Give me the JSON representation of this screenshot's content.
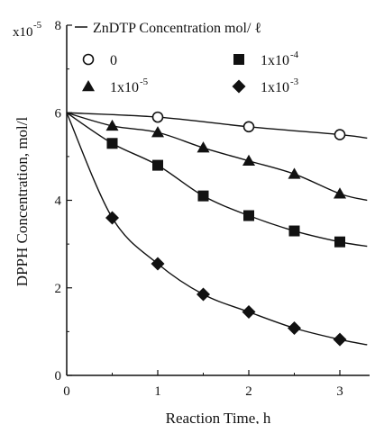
{
  "chart_data": {
    "type": "scatter",
    "xlabel": "Reaction Time, h",
    "ylabel": "DPPH Concentration, mol/l",
    "y_multiplier_label": "x10",
    "y_multiplier_exp": "-5",
    "xlim": [
      0,
      3.4
    ],
    "ylim": [
      0,
      8
    ],
    "x_ticks": [
      0,
      1,
      2,
      3
    ],
    "y_ticks": [
      0,
      2,
      4,
      6,
      8
    ],
    "legend_title": "ZnDTP Concentration mol/ ℓ",
    "legend_placement": "top",
    "series": [
      {
        "name": "0",
        "label_mantissa": "0",
        "label_exp": "",
        "marker": "open-circle",
        "x": [
          0,
          1,
          2,
          3
        ],
        "y": [
          6.0,
          5.9,
          5.68,
          5.5
        ],
        "curve_end_x": 3.3,
        "curve_end_y": 5.42
      },
      {
        "name": "1x10-5",
        "label_mantissa": "1x10",
        "label_exp": "-5",
        "marker": "triangle",
        "x": [
          0,
          0.5,
          1,
          1.5,
          2,
          2.5,
          3
        ],
        "y": [
          6.0,
          5.7,
          5.55,
          5.2,
          4.9,
          4.6,
          4.15
        ],
        "curve_end_x": 3.3,
        "curve_end_y": 4.0
      },
      {
        "name": "1x10-4",
        "label_mantissa": "1x10",
        "label_exp": "-4",
        "marker": "filled-square",
        "x": [
          0,
          0.5,
          1,
          1.5,
          2,
          2.5,
          3
        ],
        "y": [
          6.0,
          5.3,
          4.8,
          4.1,
          3.65,
          3.3,
          3.05
        ],
        "curve_end_x": 3.3,
        "curve_end_y": 2.95
      },
      {
        "name": "1x10-3",
        "label_mantissa": "1x10",
        "label_exp": "-3",
        "marker": "filled-diamond",
        "x": [
          0,
          0.5,
          1,
          1.5,
          2,
          2.5,
          3
        ],
        "y": [
          6.0,
          3.6,
          2.55,
          1.85,
          1.45,
          1.08,
          0.82
        ],
        "curve_end_x": 3.3,
        "curve_end_y": 0.7
      }
    ]
  }
}
